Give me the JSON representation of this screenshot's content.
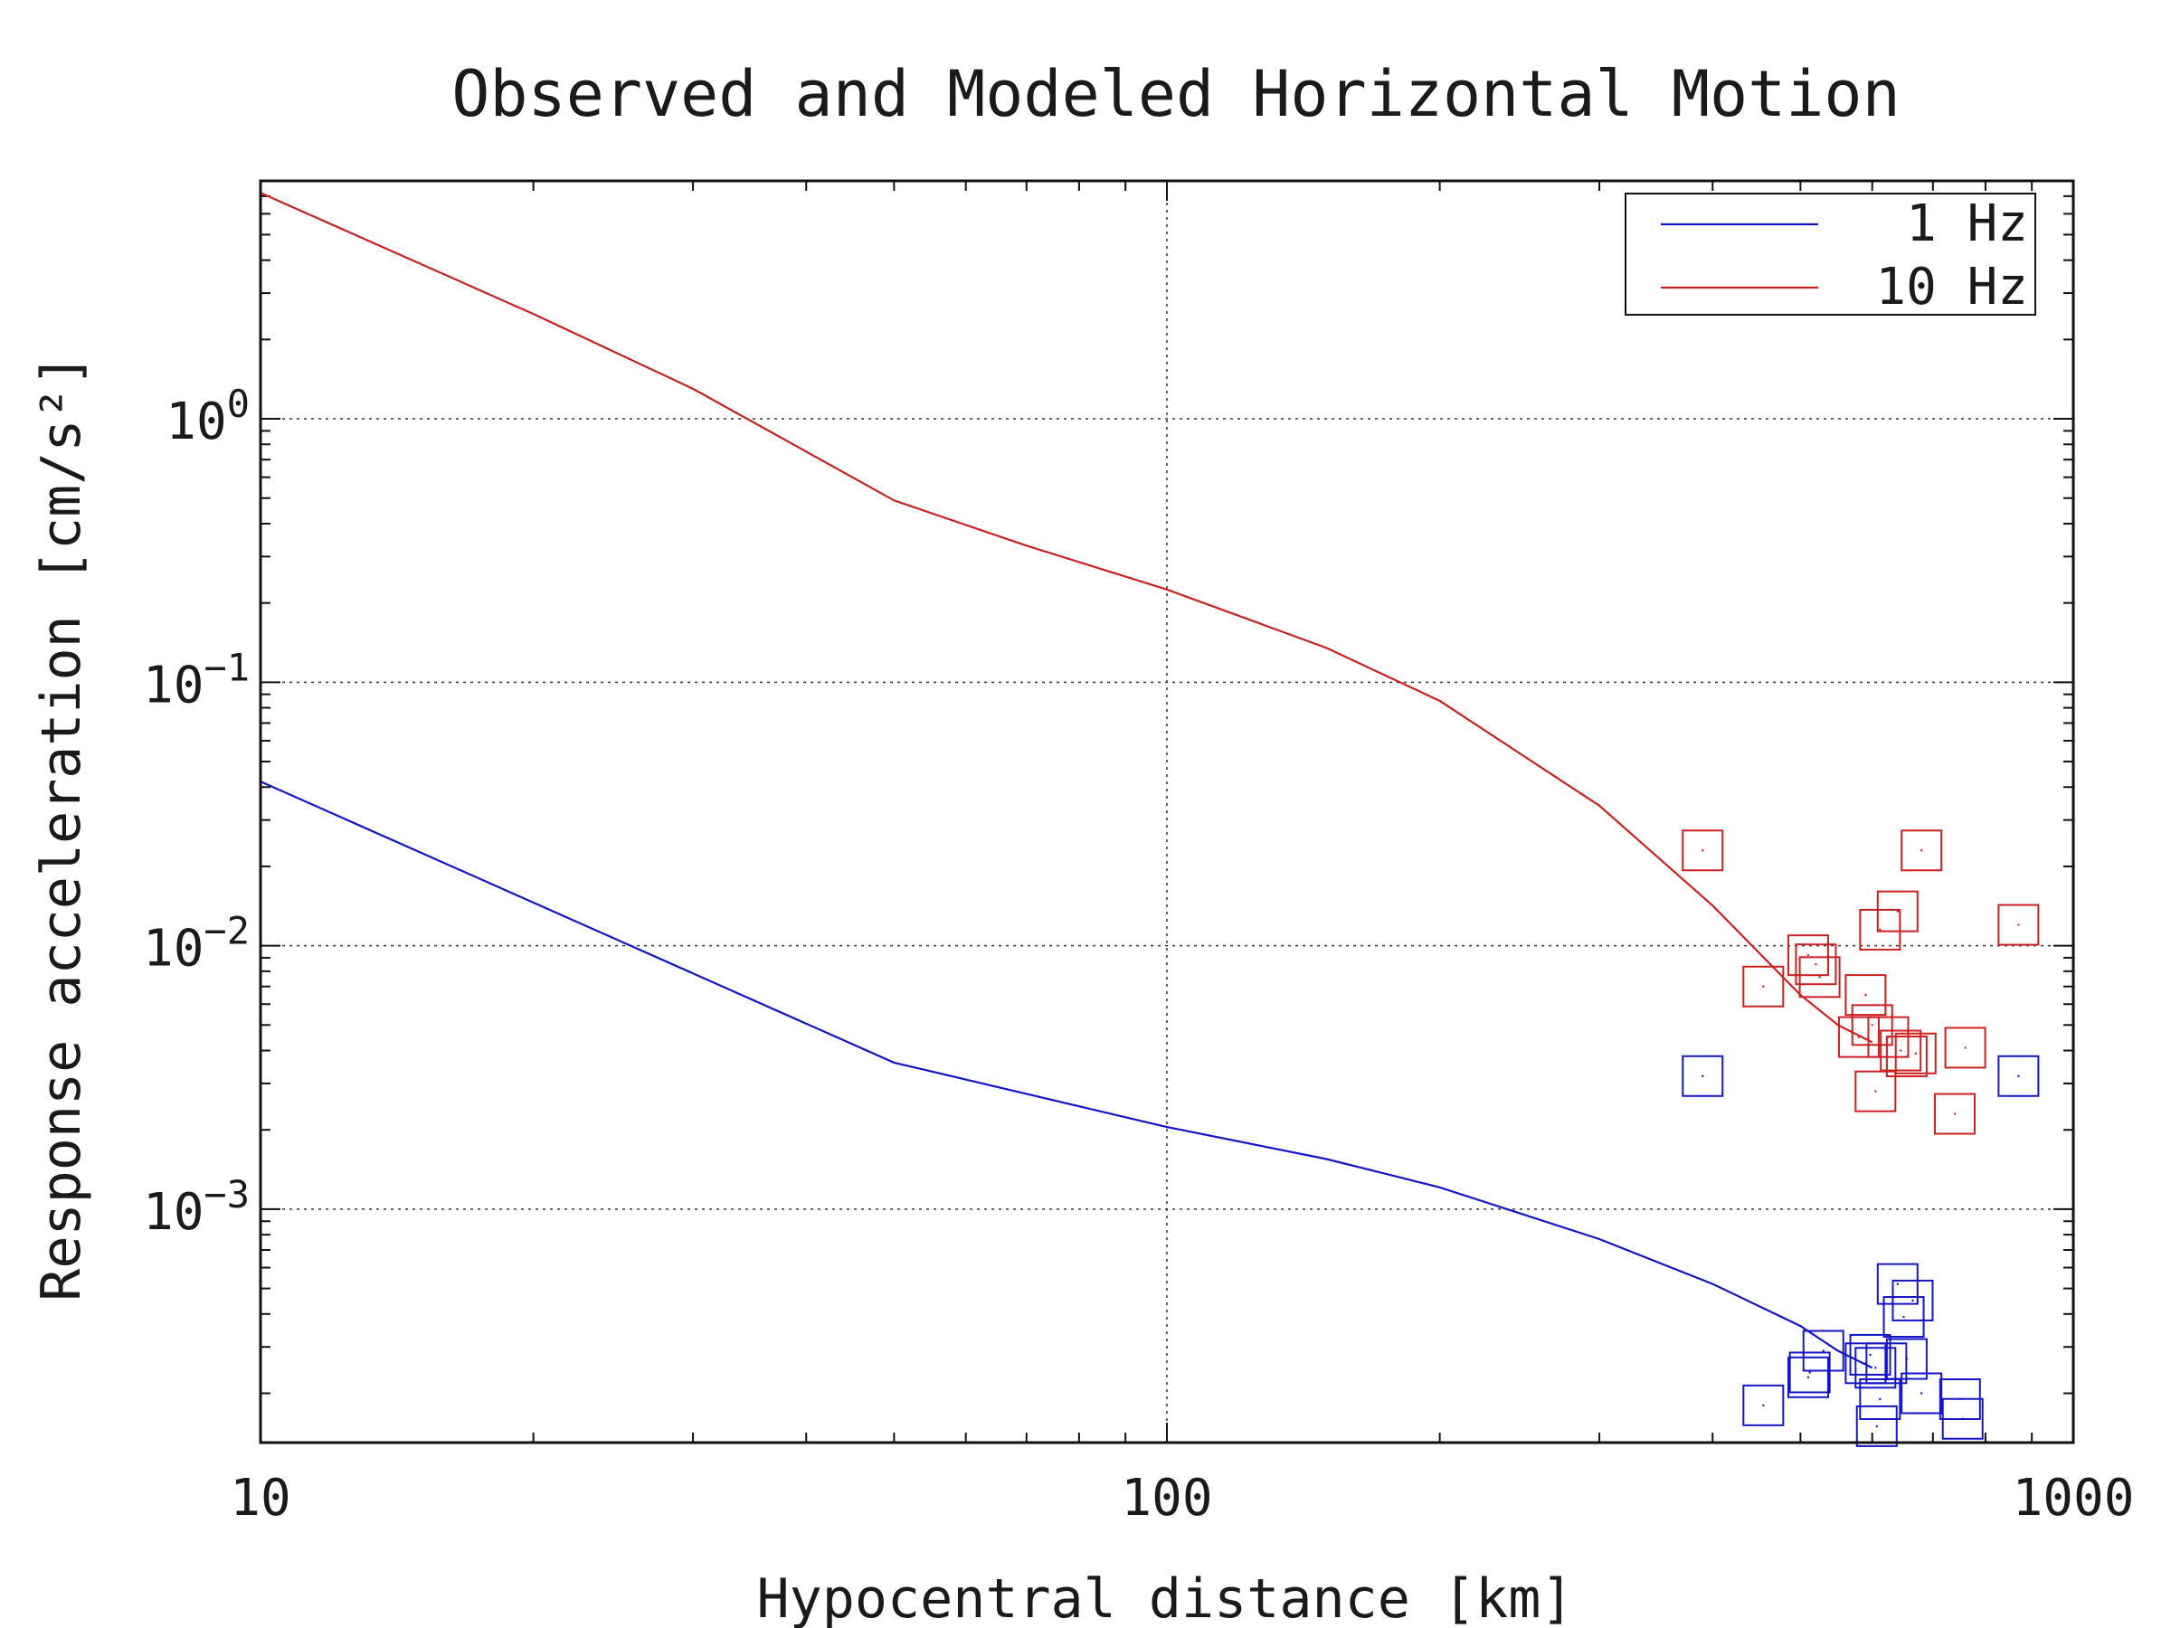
{
  "chart_data": {
    "type": "scatter",
    "title": "Observed and Modeled Horizontal Motion",
    "xlabel": "Hypocentral distance [km]",
    "ylabel": "Response acceleration [cm/s²]",
    "x_scale": "log",
    "y_scale": "log",
    "xlim": [
      10,
      1000
    ],
    "ylim": [
      0.00013,
      8
    ],
    "x_ticks": [
      {
        "value": 10,
        "label": "10"
      },
      {
        "value": 100,
        "label": "100"
      },
      {
        "value": 1000,
        "label": "1000"
      }
    ],
    "y_ticks": [
      {
        "value": 0.001,
        "base": "10",
        "exp": "−3"
      },
      {
        "value": 0.01,
        "base": "10",
        "exp": "−2"
      },
      {
        "value": 0.1,
        "base": "10",
        "exp": "−1"
      },
      {
        "value": 1,
        "base": "10",
        "exp": "0"
      }
    ],
    "grid": true,
    "legend_position": "top-right",
    "series": [
      {
        "name": "1 Hz",
        "color": "#1515c8",
        "model_curve": {
          "x": [
            10,
            50,
            100,
            150,
            200,
            300,
            400,
            500,
            550,
            600
          ],
          "y": [
            0.042,
            0.0036,
            0.00205,
            0.00155,
            0.00121,
            0.00077,
            0.00052,
            0.00036,
            0.00029,
            0.00025
          ]
        },
        "observed": {
          "x": [
            390,
            455,
            510,
            512,
            530,
            590,
            597,
            605,
            607,
            612,
            622,
            640,
            650,
            655,
            665,
            680,
            750,
            755,
            870
          ],
          "y": [
            0.0032,
            0.00018,
            0.00023,
            0.00024,
            0.00029,
            0.00026,
            0.00028,
            0.00025,
            0.00015,
            0.00019,
            0.00026,
            0.00052,
            0.00039,
            0.00027,
            0.00045,
            0.0002,
            0.00019,
            0.00016,
            0.0032
          ]
        }
      },
      {
        "name": "10 Hz",
        "color": "#cc2020",
        "model_curve": {
          "x": [
            10,
            20,
            30,
            50,
            70,
            100,
            150,
            200,
            300,
            400,
            500,
            550,
            600
          ],
          "y": [
            7.2,
            2.5,
            1.3,
            0.49,
            0.33,
            0.225,
            0.135,
            0.085,
            0.034,
            0.0142,
            0.0065,
            0.005,
            0.0043
          ]
        },
        "observed": {
          "x": [
            390,
            455,
            510,
            520,
            525,
            580,
            590,
            600,
            605,
            612,
            625,
            640,
            645,
            655,
            670,
            680,
            740,
            760,
            870
          ],
          "y": [
            0.023,
            0.007,
            0.0092,
            0.0085,
            0.0076,
            0.0045,
            0.0065,
            0.005,
            0.0028,
            0.0115,
            0.0045,
            0.0135,
            0.004,
            0.0038,
            0.0039,
            0.023,
            0.0023,
            0.0041,
            0.012
          ]
        }
      }
    ]
  }
}
